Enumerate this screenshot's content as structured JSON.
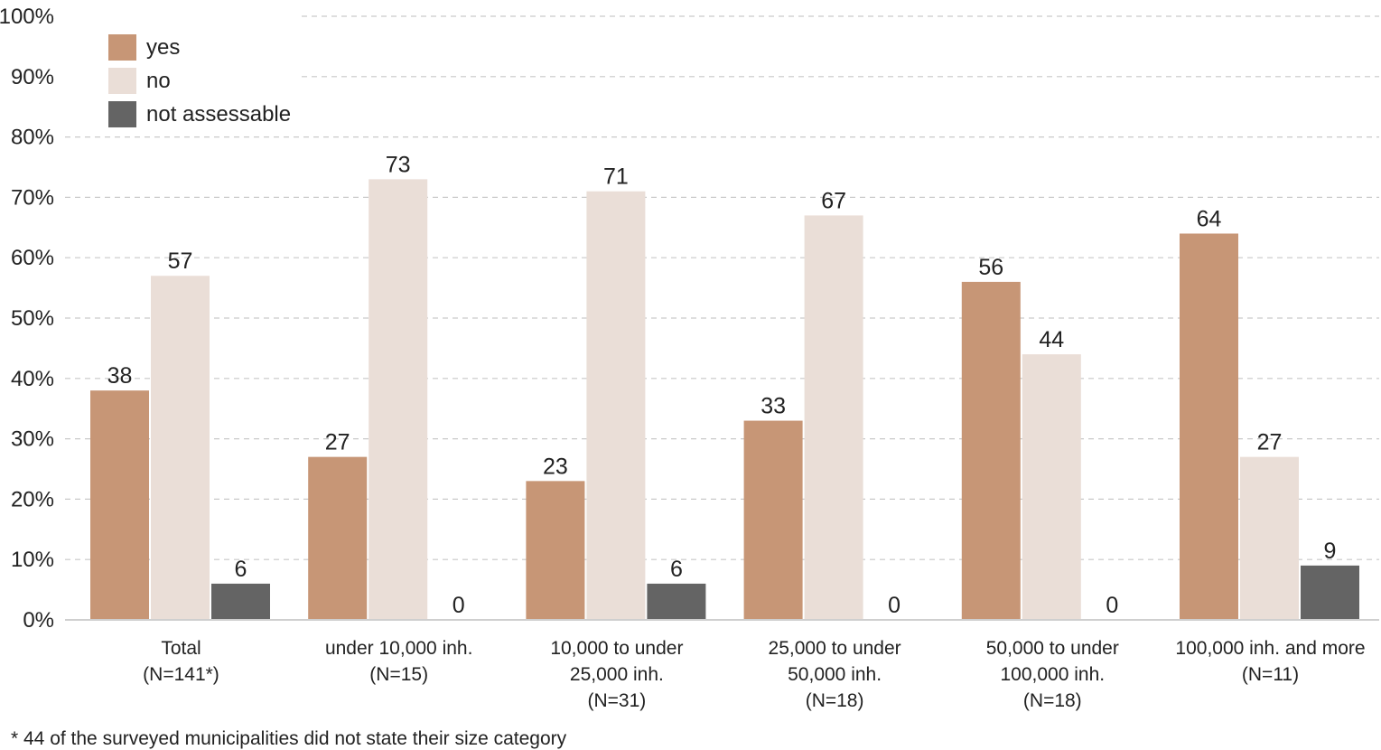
{
  "chart_data": {
    "type": "bar",
    "categories": [
      {
        "lines": [
          "Total",
          "(N=141*)"
        ]
      },
      {
        "lines": [
          "under 10,000 inh.",
          "(N=15)"
        ]
      },
      {
        "lines": [
          "10,000 to under",
          "25,000 inh.",
          "(N=31)"
        ]
      },
      {
        "lines": [
          "25,000 to under",
          "50,000 inh.",
          "(N=18)"
        ]
      },
      {
        "lines": [
          "50,000 to under",
          "100,000 inh.",
          "(N=18)"
        ]
      },
      {
        "lines": [
          "100,000 inh. and more",
          "(N=11)"
        ]
      }
    ],
    "series": [
      {
        "name": "yes",
        "color": "#c79676",
        "values": [
          38,
          27,
          23,
          33,
          56,
          64
        ],
        "labels": [
          "38",
          "27",
          "23",
          "33",
          "56",
          "64"
        ]
      },
      {
        "name": "no",
        "color": "#eaded7",
        "values": [
          57,
          73,
          71,
          67,
          44,
          27
        ],
        "labels": [
          "57",
          "73",
          "71",
          "67",
          "44",
          "27"
        ]
      },
      {
        "name": "not assessable",
        "color": "#646464",
        "values": [
          6,
          0,
          6,
          0,
          0,
          9
        ],
        "labels": [
          "6",
          "0",
          "6",
          "0",
          "0",
          "9"
        ]
      }
    ],
    "yticks": [
      "0%",
      "10%",
      "20%",
      "30%",
      "40%",
      "50%",
      "60%",
      "70%",
      "80%",
      "90%",
      "100%"
    ],
    "ylim": [
      0,
      100
    ],
    "grid": true,
    "legend": "top-left",
    "footnote": "* 44 of the surveyed municipalities did not state their size category"
  }
}
